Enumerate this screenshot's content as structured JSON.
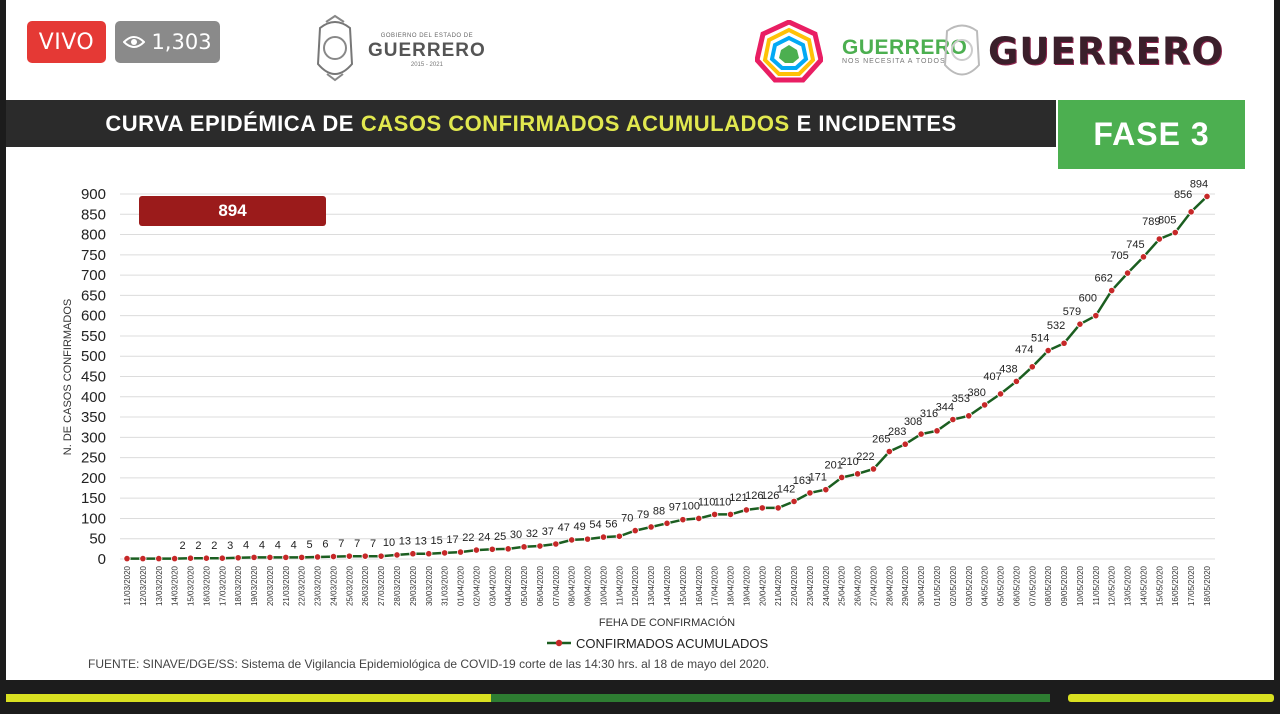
{
  "stream": {
    "live_label": "VIVO",
    "viewer_count": "1,303"
  },
  "header": {
    "gov_small": "GOBIERNO DEL ESTADO DE",
    "gov_name": "GUERRERO",
    "gov_years": "2015 - 2021",
    "slogan_big": "GUERRERO",
    "slogan_small": "NOS NECESITA A TODOS",
    "brand": "GUERRERO"
  },
  "title": {
    "part1": "CURVA EPIDÉMICA DE",
    "highlight": "CASOS CONFIRMADOS ACUMULADOS",
    "part2": "E INCIDENTES"
  },
  "phase_label": "FASE 3",
  "total_label": "894",
  "source_text": "FUENTE: SINAVE/DGE/SS: Sistema de Vigilancia Epidemiológica de COVID-19 corte de las 14:30 hrs. al 18 de mayo del 2020.",
  "colors": {
    "line": "#1b5e20",
    "marker": "#c62828",
    "title_highlight": "#e1e84f",
    "phase": "#4caf50",
    "total_box": "#9b1b1b"
  },
  "chart_data": {
    "type": "line",
    "xlabel": "FEHA DE CONFIRMACIÓN",
    "ylabel": "N. DE CASOS CONFIRMADOS",
    "ylim": [
      0,
      900
    ],
    "yticks": [
      0,
      50,
      100,
      150,
      200,
      250,
      300,
      350,
      400,
      450,
      500,
      550,
      600,
      650,
      700,
      750,
      800,
      850,
      900
    ],
    "grid": true,
    "legend_position": "bottom",
    "categories": [
      "11/03/2020",
      "12/03/2020",
      "13/03/2020",
      "14/03/2020",
      "15/03/2020",
      "16/03/2020",
      "17/03/2020",
      "18/03/2020",
      "19/03/2020",
      "20/03/2020",
      "21/03/2020",
      "22/03/2020",
      "23/03/2020",
      "24/03/2020",
      "25/03/2020",
      "26/03/2020",
      "27/03/2020",
      "28/03/2020",
      "29/03/2020",
      "30/03/2020",
      "31/03/2020",
      "01/04/2020",
      "02/04/2020",
      "03/04/2020",
      "04/04/2020",
      "05/04/2020",
      "06/04/2020",
      "07/04/2020",
      "08/04/2020",
      "09/04/2020",
      "10/04/2020",
      "11/04/2020",
      "12/04/2020",
      "13/04/2020",
      "14/04/2020",
      "15/04/2020",
      "16/04/2020",
      "17/04/2020",
      "18/04/2020",
      "19/04/2020",
      "20/04/2020",
      "21/04/2020",
      "22/04/2020",
      "23/04/2020",
      "24/04/2020",
      "25/04/2020",
      "26/04/2020",
      "27/04/2020",
      "28/04/2020",
      "29/04/2020",
      "30/04/2020",
      "01/05/2020",
      "02/05/2020",
      "03/05/2020",
      "04/05/2020",
      "05/05/2020",
      "06/05/2020",
      "07/05/2020",
      "08/05/2020",
      "09/05/2020",
      "10/05/2020",
      "11/05/2020",
      "12/05/2020",
      "13/05/2020",
      "14/05/2020",
      "15/05/2020",
      "16/05/2020",
      "17/05/2020",
      "18/05/2020"
    ],
    "series": [
      {
        "name": "CONFIRMADOS ACUMULADOS",
        "values": [
          1,
          1,
          1,
          1,
          2,
          2,
          2,
          3,
          4,
          4,
          4,
          4,
          5,
          6,
          7,
          7,
          7,
          10,
          13,
          13,
          15,
          17,
          22,
          24,
          25,
          30,
          32,
          37,
          47,
          49,
          54,
          56,
          70,
          79,
          88,
          97,
          100,
          110,
          110,
          121,
          126,
          126,
          142,
          163,
          171,
          201,
          210,
          222,
          265,
          283,
          308,
          316,
          344,
          353,
          380,
          407,
          438,
          474,
          514,
          532,
          579,
          600,
          662,
          705,
          745,
          789,
          805,
          856,
          894
        ],
        "labels": [
          "",
          "",
          "",
          "",
          "2",
          "2",
          "2",
          "3",
          "4",
          "4",
          "4",
          "4",
          "5",
          "6",
          "7",
          "7",
          "7",
          "10",
          "13",
          "13",
          "15",
          "17",
          "22",
          "24",
          "25",
          "30",
          "32",
          "37",
          "47",
          "49",
          "54",
          "56",
          "70",
          "79",
          "88",
          "97",
          "100",
          "110",
          "110",
          "121",
          "126",
          "126",
          "142",
          "163",
          "171",
          "201",
          "210",
          "222",
          "265",
          "283",
          "308",
          "316",
          "344",
          "353",
          "380",
          "407",
          "438",
          "474",
          "514",
          "532",
          "579",
          "600",
          "662",
          "705",
          "745",
          "789",
          "805",
          "856",
          "894"
        ]
      }
    ]
  }
}
